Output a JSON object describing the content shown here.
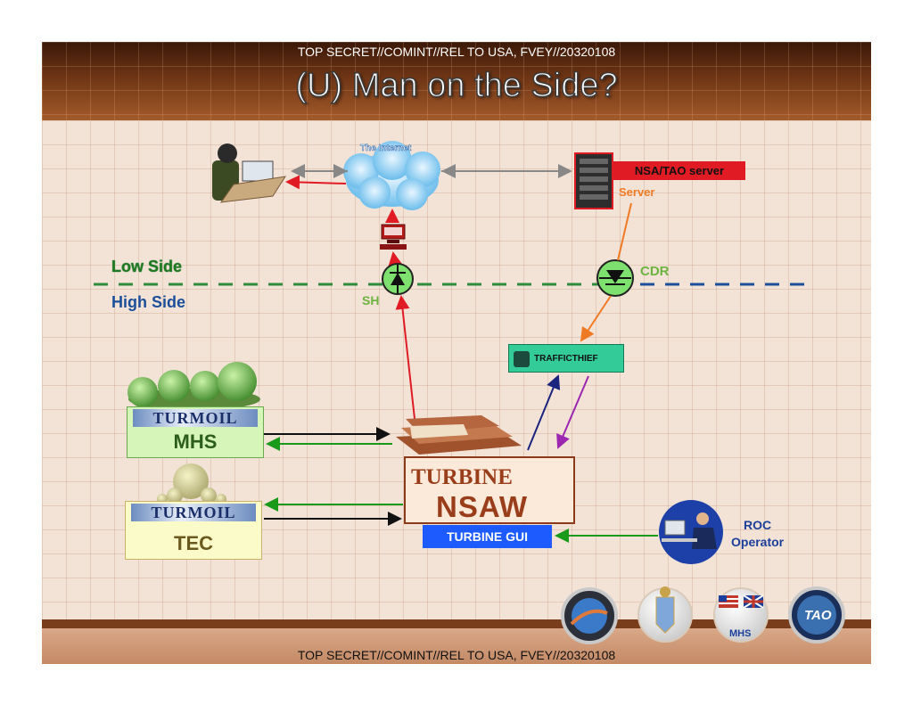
{
  "classification": {
    "top": "TOP SECRET//COMINT//REL TO USA, FVEY//20320108",
    "bottom": "TOP SECRET//COMINT//REL TO USA, FVEY//20320108"
  },
  "title": "(U) Man on the Side?",
  "labels": {
    "internet": "The Internet",
    "nsa_tao_server": "NSA/TAO server",
    "server": "Server",
    "low_side": "Low Side",
    "high_side": "High Side",
    "sh": "SH",
    "cdr": "CDR",
    "trafficthief": "TRAFFICTHIEF",
    "turbine": "TURBINE",
    "nsaw": "NSAW",
    "turbine_gui": "TURBINE GUI",
    "turmoil_mhs": "TURMOIL",
    "mhs": "MHS",
    "turmoil_tec": "TURMOIL",
    "tec": "TEC",
    "roc_line1": "ROC",
    "roc_line2": "Operator",
    "seal_mhs": "MHS",
    "seal_tao": "TAO"
  },
  "colors": {
    "header": "#6e3515",
    "arrow_red": "#e01b24",
    "arrow_orange": "#ef7a24",
    "arrow_green": "#1a9a1a",
    "arrow_black": "#111111",
    "arrow_navy": "#1a237e",
    "arrow_purple": "#9c27b0",
    "dash_green": "#2e8b3a",
    "dash_blue": "#1b4f9a"
  },
  "icons": [
    "user-laptop-icon",
    "internet-cloud-icon",
    "server-rack-icon",
    "computer-icon",
    "diode-icon",
    "turbine-fan-icon",
    "operator-icon",
    "seal-icon"
  ]
}
